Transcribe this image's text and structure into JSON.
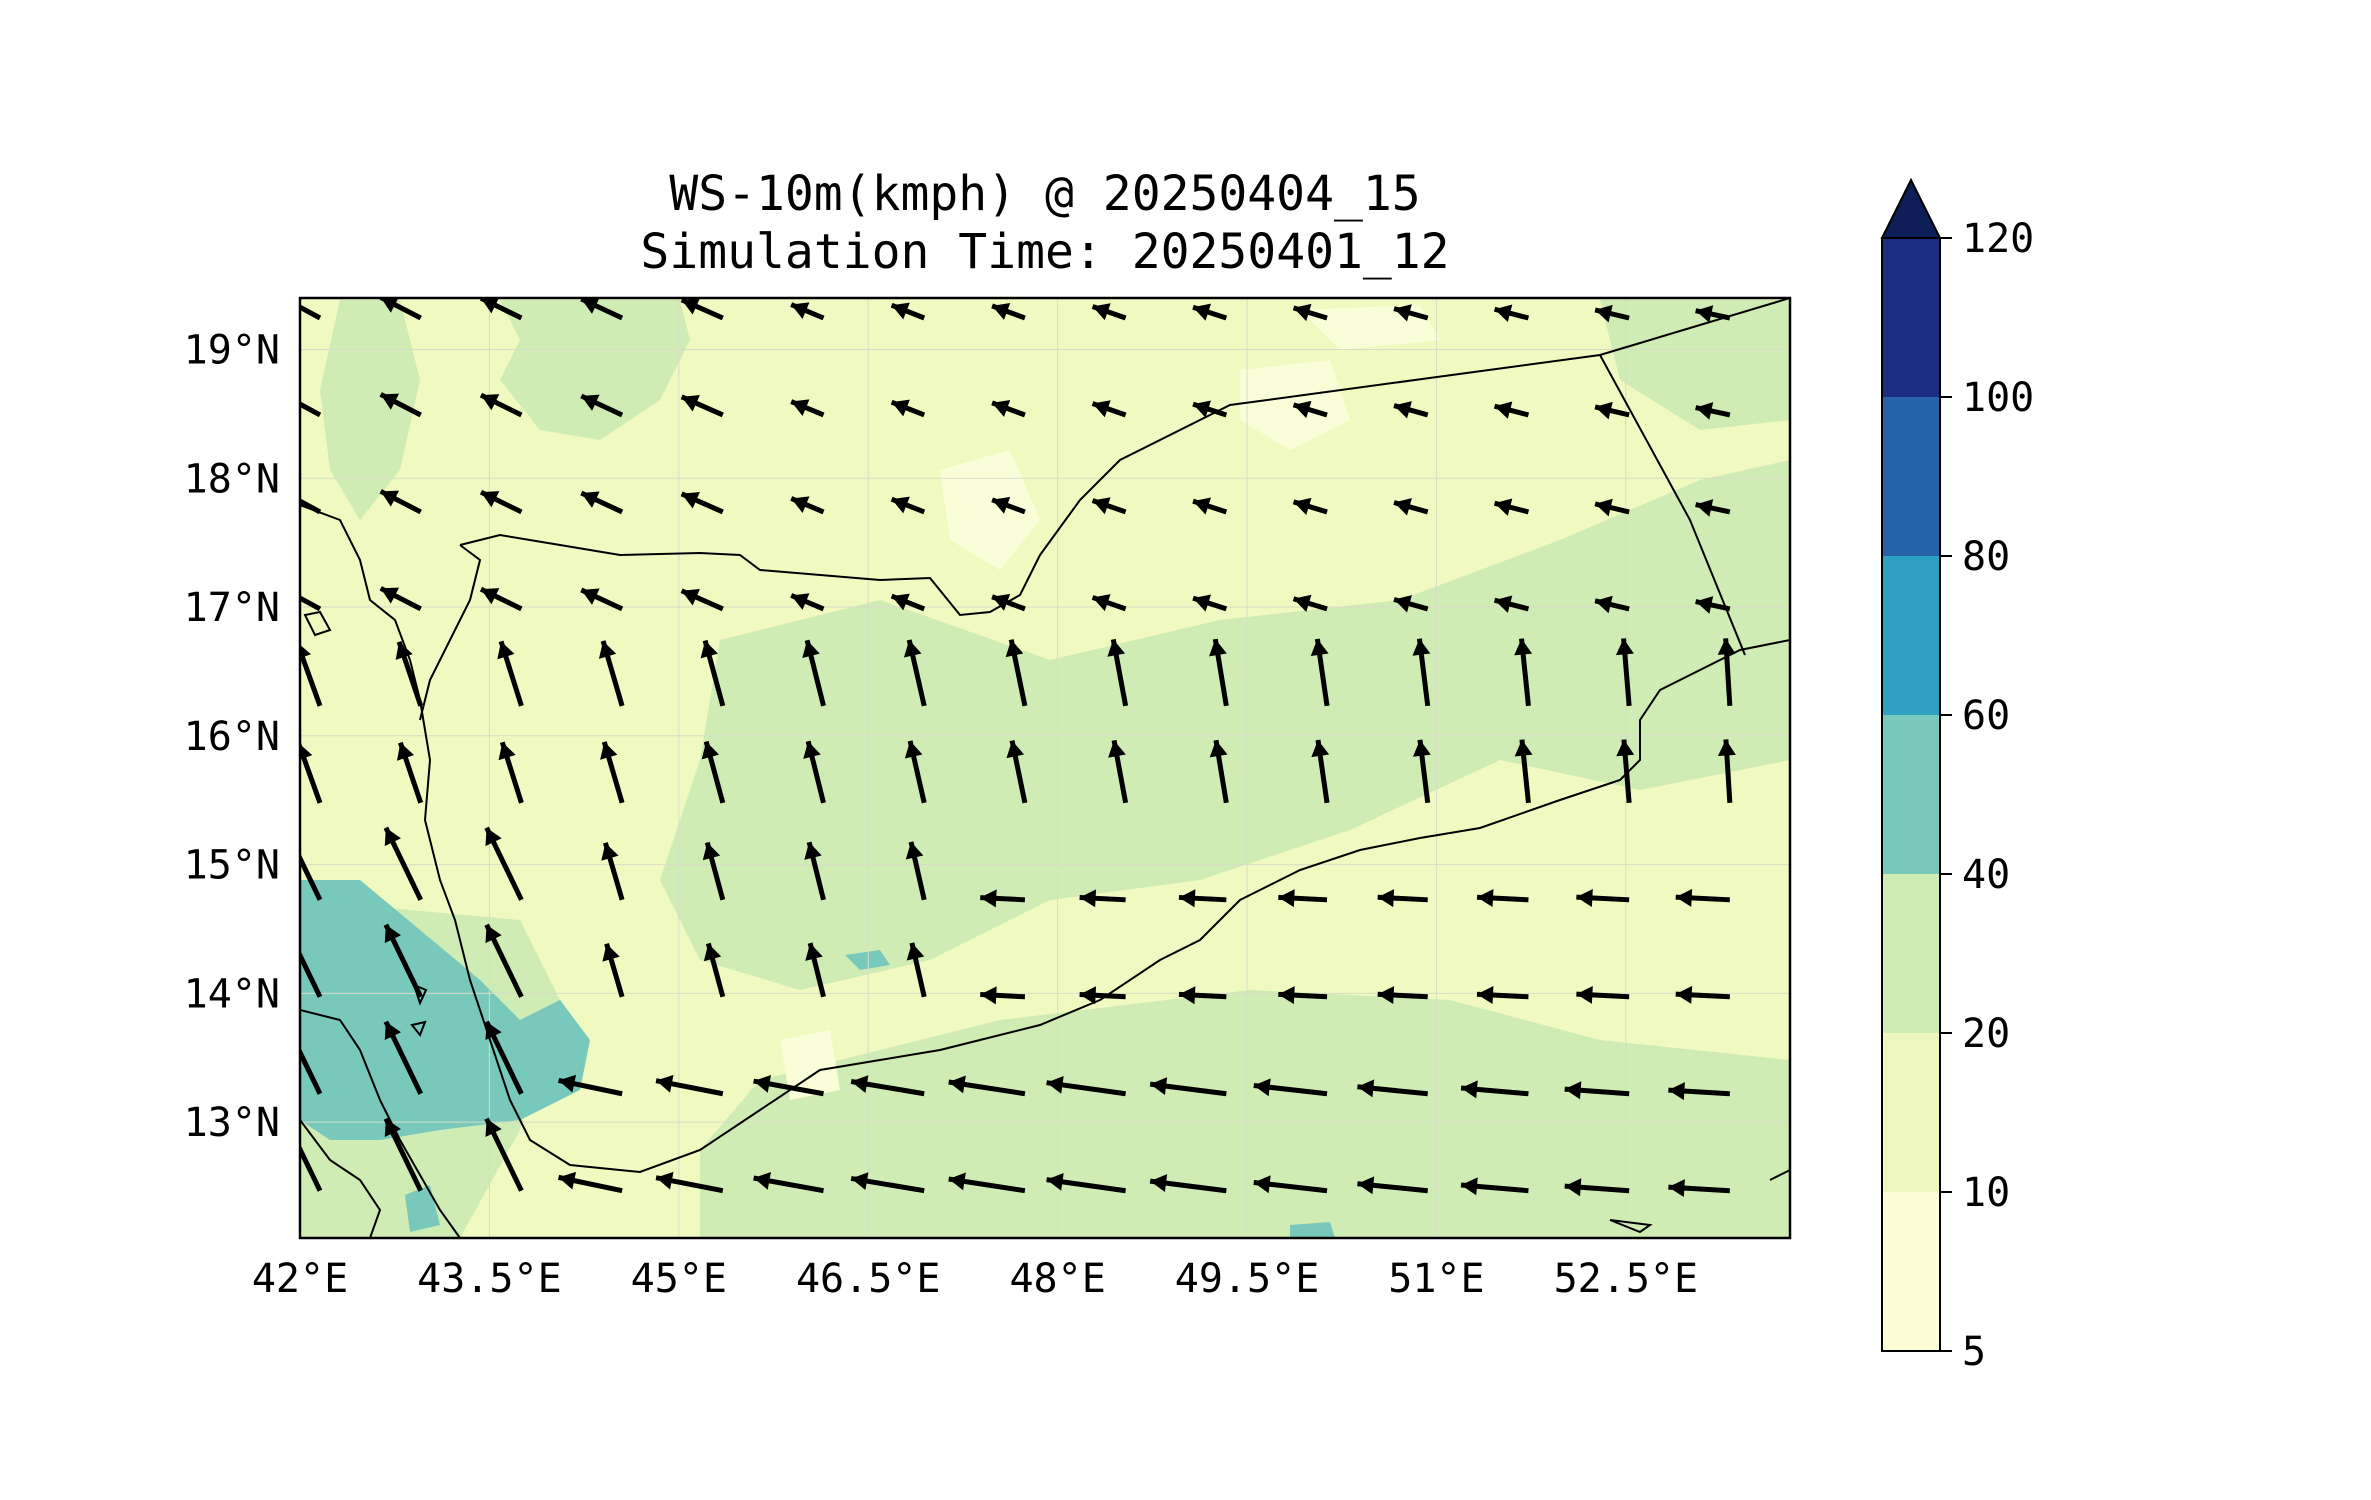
{
  "title": {
    "line1": "WS-10m(kmph) @ 20250404_15",
    "line2": "Simulation Time: 20250401_12"
  },
  "map": {
    "lon_range": [
      42.0,
      53.8
    ],
    "lat_range": [
      12.1,
      19.4
    ],
    "lon_ticks": [
      42.0,
      43.5,
      45.0,
      46.5,
      48.0,
      49.5,
      51.0,
      52.5
    ],
    "lon_tick_labels": [
      "42°E",
      "43.5°E",
      "45°E",
      "46.5°E",
      "48°E",
      "49.5°E",
      "51°E",
      "52.5°E"
    ],
    "lat_ticks": [
      19,
      18,
      17,
      16,
      15,
      14,
      13
    ],
    "lat_tick_labels": [
      "19°N",
      "18°N",
      "17°N",
      "16°N",
      "15°N",
      "14°N",
      "13°N"
    ],
    "gridlines": true
  },
  "colorbar": {
    "levels": [
      5,
      10,
      20,
      40,
      60,
      80,
      100,
      120
    ],
    "labels": [
      "5",
      "10",
      "20",
      "40",
      "60",
      "80",
      "100",
      "120"
    ],
    "colors": [
      "#fdfed5",
      "#eef8be",
      "#cfecb5",
      "#78c8bc",
      "#2ea0c1",
      "#2563a9",
      "#1d2d81"
    ],
    "extend_color": "#0d1f56",
    "extend": "max"
  },
  "colors": {
    "land_base": "#f0f9c0",
    "calm": "#fafed8",
    "moderate": "#cfecb5",
    "strong": "#78c8bc",
    "coast": "#000000",
    "arrow": "#000000"
  }
}
